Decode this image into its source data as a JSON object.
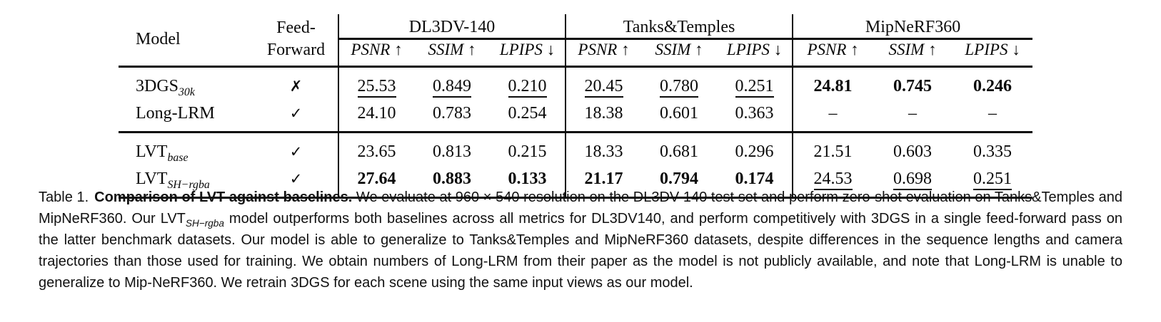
{
  "table": {
    "header": {
      "model_label": "Model",
      "feed_forward_line1": "Feed-",
      "feed_forward_line2": "Forward",
      "groups": [
        {
          "label": "DL3DV-140",
          "metrics": [
            "PSNR ↑",
            "SSIM ↑",
            "LPIPS ↓"
          ]
        },
        {
          "label": "Tanks&Temples",
          "metrics": [
            "PSNR ↑",
            "SSIM ↑",
            "LPIPS ↓"
          ]
        },
        {
          "label": "MipNeRF360",
          "metrics": [
            "PSNR ↑",
            "SSIM ↑",
            "LPIPS ↓"
          ]
        }
      ]
    },
    "rows": [
      {
        "model": {
          "base": "3DGS",
          "sub": "30k"
        },
        "feed_forward": {
          "mark": "✗"
        },
        "cells": [
          {
            "text": "25.53",
            "emphasis": "underline"
          },
          {
            "text": "0.849",
            "emphasis": "underline"
          },
          {
            "text": "0.210",
            "emphasis": "underline"
          },
          {
            "text": "20.45",
            "emphasis": "underline"
          },
          {
            "text": "0.780",
            "emphasis": "underline"
          },
          {
            "text": "0.251",
            "emphasis": "underline"
          },
          {
            "text": "24.81",
            "emphasis": "bold"
          },
          {
            "text": "0.745",
            "emphasis": "bold"
          },
          {
            "text": "0.246",
            "emphasis": "bold"
          }
        ]
      },
      {
        "model": {
          "base": "Long-LRM",
          "sub": ""
        },
        "feed_forward": {
          "mark": "✓"
        },
        "cells": [
          {
            "text": "24.10",
            "emphasis": "plain"
          },
          {
            "text": "0.783",
            "emphasis": "plain"
          },
          {
            "text": "0.254",
            "emphasis": "plain"
          },
          {
            "text": "18.38",
            "emphasis": "plain"
          },
          {
            "text": "0.601",
            "emphasis": "plain"
          },
          {
            "text": "0.363",
            "emphasis": "plain"
          },
          {
            "text": "–",
            "emphasis": "plain"
          },
          {
            "text": "–",
            "emphasis": "plain"
          },
          {
            "text": "–",
            "emphasis": "plain"
          }
        ]
      },
      {
        "model": {
          "base": "LVT",
          "sub": "base"
        },
        "feed_forward": {
          "mark": "✓"
        },
        "cells": [
          {
            "text": "23.65",
            "emphasis": "plain"
          },
          {
            "text": "0.813",
            "emphasis": "plain"
          },
          {
            "text": "0.215",
            "emphasis": "plain"
          },
          {
            "text": "18.33",
            "emphasis": "plain"
          },
          {
            "text": "0.681",
            "emphasis": "plain"
          },
          {
            "text": "0.296",
            "emphasis": "plain"
          },
          {
            "text": "21.51",
            "emphasis": "plain"
          },
          {
            "text": "0.603",
            "emphasis": "plain"
          },
          {
            "text": "0.335",
            "emphasis": "plain"
          }
        ]
      },
      {
        "model": {
          "base": "LVT",
          "sub": "SH−rgba"
        },
        "feed_forward": {
          "mark": "✓"
        },
        "cells": [
          {
            "text": "27.64",
            "emphasis": "bold"
          },
          {
            "text": "0.883",
            "emphasis": "bold"
          },
          {
            "text": "0.133",
            "emphasis": "bold"
          },
          {
            "text": "21.17",
            "emphasis": "bold"
          },
          {
            "text": "0.794",
            "emphasis": "bold"
          },
          {
            "text": "0.174",
            "emphasis": "bold"
          },
          {
            "text": "24.53",
            "emphasis": "underline"
          },
          {
            "text": "0.698",
            "emphasis": "underline"
          },
          {
            "text": "0.251",
            "emphasis": "underline"
          }
        ]
      }
    ]
  },
  "caption": {
    "label": "Table 1.",
    "title_bold": "Comparison of LVT against baselines.",
    "body_before_sub": "We evaluate at 960 × 540 resolution on the DL3DV-140 test set and perform zero-shot evaluation on Tanks&Temples and MipNeRF360. Our LVT",
    "model_sub": "SH−rgba",
    "body_after_sub": " model outperforms both baselines across all metrics for DL3DV140, and perform competitively with 3DGS in a single feed-forward pass on the latter benchmark datasets. Our model is able to generalize to Tanks&Temples and MipNeRF360 datasets, despite differences in the sequence lengths and camera trajectories than those used for training. We obtain numbers of Long-LRM from their paper as the model is not publicly available, and note that Long-LRM is unable to generalize to Mip-NeRF360. We retrain 3DGS for each scene using the same input views as our model."
  }
}
